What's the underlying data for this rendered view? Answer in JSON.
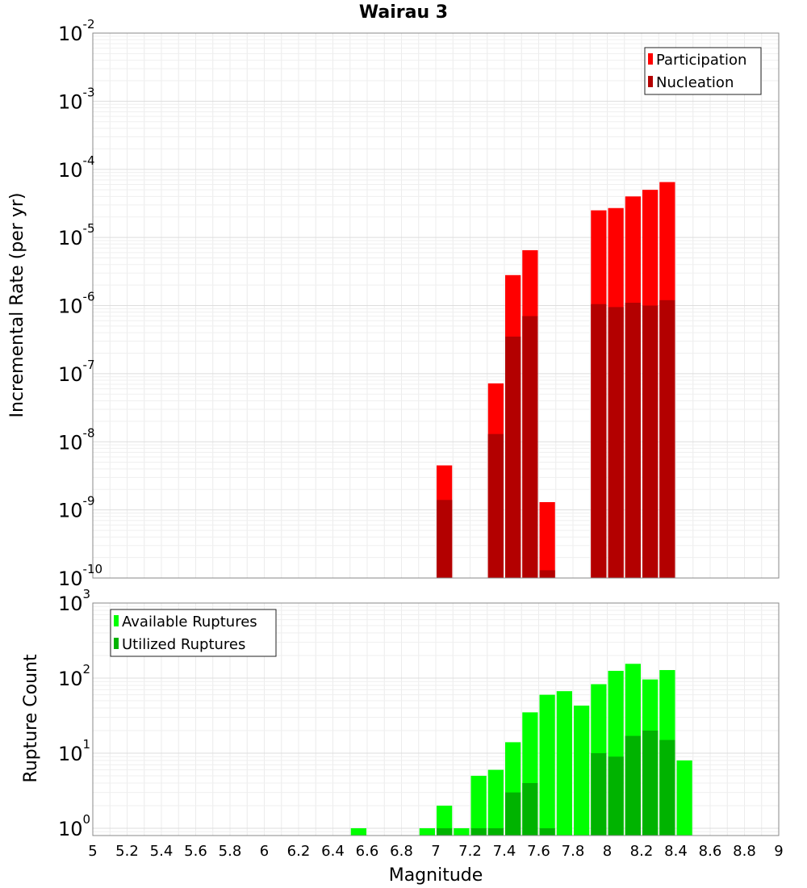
{
  "chart_data": [
    {
      "type": "bar",
      "title": "Wairau 3",
      "ylabel": "Incremental Rate (per yr)",
      "xlabel": "",
      "yscale": "log",
      "ylim": [
        1e-10,
        0.01
      ],
      "xlim": [
        5,
        9
      ],
      "grid": true,
      "legend_position": "top-right",
      "yticks": [
        {
          "base": "10",
          "exp": "-2",
          "value": 0.01
        },
        {
          "base": "10",
          "exp": "-3",
          "value": 0.001
        },
        {
          "base": "10",
          "exp": "-4",
          "value": 0.0001
        },
        {
          "base": "10",
          "exp": "-5",
          "value": 1e-05
        },
        {
          "base": "10",
          "exp": "-6",
          "value": 1e-06
        },
        {
          "base": "10",
          "exp": "-7",
          "value": 1e-07
        },
        {
          "base": "10",
          "exp": "-8",
          "value": 1e-08
        },
        {
          "base": "10",
          "exp": "-9",
          "value": 1e-09
        },
        {
          "base": "10",
          "exp": "-10",
          "value": 1e-10
        }
      ],
      "series": [
        {
          "name": "Participation",
          "color": "#ff0000",
          "points": [
            {
              "x": 7.05,
              "y": 4.5e-09
            },
            {
              "x": 7.35,
              "y": 7.2e-08
            },
            {
              "x": 7.45,
              "y": 2.8e-06
            },
            {
              "x": 7.55,
              "y": 6.5e-06
            },
            {
              "x": 7.65,
              "y": 1.3e-09
            },
            {
              "x": 7.95,
              "y": 2.5e-05
            },
            {
              "x": 8.05,
              "y": 2.7e-05
            },
            {
              "x": 8.15,
              "y": 4e-05
            },
            {
              "x": 8.25,
              "y": 5e-05
            },
            {
              "x": 8.35,
              "y": 6.5e-05
            }
          ]
        },
        {
          "name": "Nucleation",
          "color": "#b30000",
          "points": [
            {
              "x": 7.05,
              "y": 1.4e-09
            },
            {
              "x": 7.35,
              "y": 1.3e-08
            },
            {
              "x": 7.45,
              "y": 3.5e-07
            },
            {
              "x": 7.55,
              "y": 7e-07
            },
            {
              "x": 7.65,
              "y": 1.3e-10
            },
            {
              "x": 7.95,
              "y": 1.05e-06
            },
            {
              "x": 8.05,
              "y": 9.5e-07
            },
            {
              "x": 8.15,
              "y": 1.1e-06
            },
            {
              "x": 8.25,
              "y": 1e-06
            },
            {
              "x": 8.35,
              "y": 1.2e-06
            }
          ]
        }
      ]
    },
    {
      "type": "bar",
      "title": "",
      "ylabel": "Rupture Count",
      "xlabel": "Magnitude",
      "yscale": "log",
      "ylim": [
        0.8,
        1000
      ],
      "xlim": [
        5,
        9
      ],
      "grid": true,
      "legend_position": "top-left",
      "xticks": [
        "5",
        "5.2",
        "5.4",
        "5.6",
        "5.8",
        "6",
        "6.2",
        "6.4",
        "6.6",
        "6.8",
        "7",
        "7.2",
        "7.4",
        "7.6",
        "7.8",
        "8",
        "8.2",
        "8.4",
        "8.6",
        "8.8",
        "9"
      ],
      "yticks": [
        {
          "base": "10",
          "exp": "3",
          "value": 1000
        },
        {
          "base": "10",
          "exp": "2",
          "value": 100
        },
        {
          "base": "10",
          "exp": "1",
          "value": 10
        },
        {
          "base": "10",
          "exp": "0",
          "value": 1
        }
      ],
      "series": [
        {
          "name": "Available Ruptures",
          "color": "#00ff00",
          "points": [
            {
              "x": 6.55,
              "y": 1
            },
            {
              "x": 6.95,
              "y": 1
            },
            {
              "x": 7.05,
              "y": 2
            },
            {
              "x": 7.15,
              "y": 1
            },
            {
              "x": 7.25,
              "y": 5
            },
            {
              "x": 7.35,
              "y": 6
            },
            {
              "x": 7.45,
              "y": 14
            },
            {
              "x": 7.55,
              "y": 35
            },
            {
              "x": 7.65,
              "y": 60
            },
            {
              "x": 7.75,
              "y": 67
            },
            {
              "x": 7.85,
              "y": 43
            },
            {
              "x": 7.95,
              "y": 83
            },
            {
              "x": 8.05,
              "y": 125
            },
            {
              "x": 8.15,
              "y": 155
            },
            {
              "x": 8.25,
              "y": 96
            },
            {
              "x": 8.35,
              "y": 128
            },
            {
              "x": 8.45,
              "y": 8
            }
          ]
        },
        {
          "name": "Utilized Ruptures",
          "color": "#00b300",
          "points": [
            {
              "x": 7.05,
              "y": 1
            },
            {
              "x": 7.25,
              "y": 1
            },
            {
              "x": 7.35,
              "y": 1
            },
            {
              "x": 7.45,
              "y": 3
            },
            {
              "x": 7.55,
              "y": 4
            },
            {
              "x": 7.65,
              "y": 1
            },
            {
              "x": 7.95,
              "y": 10
            },
            {
              "x": 8.05,
              "y": 9
            },
            {
              "x": 8.15,
              "y": 17
            },
            {
              "x": 8.25,
              "y": 20
            },
            {
              "x": 8.35,
              "y": 15
            }
          ]
        }
      ]
    }
  ]
}
